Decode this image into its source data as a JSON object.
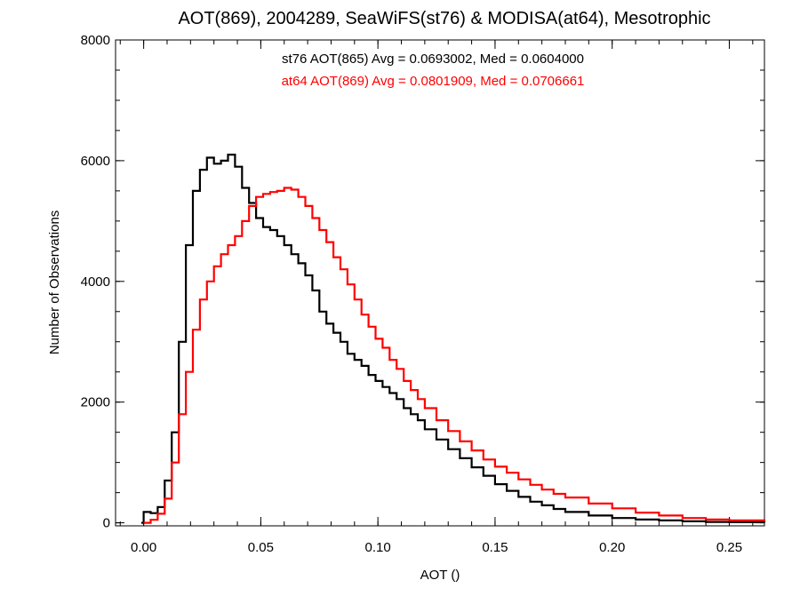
{
  "chart_data": {
    "type": "line",
    "title": "AOT(869), 2004289, SeaWiFS(st76) & MODISA(at64), Mesotrophic",
    "xlabel": "AOT ()",
    "ylabel": "Number of Observations",
    "xlim": [
      -0.012,
      0.265
    ],
    "ylim": [
      -50,
      8000
    ],
    "xticks": [
      0.0,
      0.05,
      0.1,
      0.15,
      0.2,
      0.25
    ],
    "xtick_labels": [
      "0.00",
      "0.05",
      "0.10",
      "0.15",
      "0.20",
      "0.25"
    ],
    "yticks": [
      0,
      2000,
      4000,
      6000,
      8000
    ],
    "ytick_labels": [
      "0",
      "2000",
      "4000",
      "6000",
      "8000"
    ],
    "grid": false,
    "legend": "top-center",
    "series": [
      {
        "name": "st76",
        "label": "st76 AOT(865) Avg = 0.0693002, Med = 0.0604000",
        "color": "#000000",
        "x": [
          -0.001,
          0.0,
          0.003,
          0.006,
          0.009,
          0.012,
          0.015,
          0.018,
          0.021,
          0.024,
          0.027,
          0.03,
          0.033,
          0.036,
          0.039,
          0.042,
          0.045,
          0.048,
          0.051,
          0.054,
          0.057,
          0.06,
          0.063,
          0.066,
          0.069,
          0.072,
          0.075,
          0.078,
          0.081,
          0.084,
          0.087,
          0.09,
          0.093,
          0.096,
          0.099,
          0.102,
          0.105,
          0.108,
          0.111,
          0.114,
          0.117,
          0.12,
          0.125,
          0.13,
          0.135,
          0.14,
          0.145,
          0.15,
          0.155,
          0.16,
          0.165,
          0.17,
          0.175,
          0.18,
          0.19,
          0.2,
          0.21,
          0.22,
          0.23,
          0.24,
          0.25,
          0.265
        ],
        "y": [
          0,
          180,
          160,
          260,
          700,
          1500,
          3000,
          4600,
          5500,
          5850,
          6050,
          5950,
          6000,
          6100,
          5900,
          5550,
          5300,
          5050,
          4900,
          4850,
          4750,
          4600,
          4450,
          4300,
          4100,
          3850,
          3500,
          3300,
          3150,
          3000,
          2800,
          2700,
          2600,
          2450,
          2350,
          2250,
          2150,
          2050,
          1900,
          1800,
          1700,
          1550,
          1380,
          1220,
          1070,
          920,
          780,
          640,
          530,
          430,
          350,
          290,
          230,
          180,
          120,
          80,
          55,
          40,
          25,
          15,
          10,
          5
        ]
      },
      {
        "name": "at64",
        "label": "at64 AOT(869) Avg = 0.0801909, Med = 0.0706661",
        "color": "#ff0000",
        "x": [
          0.0,
          0.003,
          0.006,
          0.009,
          0.012,
          0.015,
          0.018,
          0.021,
          0.024,
          0.027,
          0.03,
          0.033,
          0.036,
          0.039,
          0.042,
          0.045,
          0.048,
          0.051,
          0.054,
          0.057,
          0.06,
          0.063,
          0.066,
          0.069,
          0.072,
          0.075,
          0.078,
          0.081,
          0.084,
          0.087,
          0.09,
          0.093,
          0.096,
          0.099,
          0.102,
          0.105,
          0.108,
          0.111,
          0.114,
          0.117,
          0.12,
          0.125,
          0.13,
          0.135,
          0.14,
          0.145,
          0.15,
          0.155,
          0.16,
          0.165,
          0.17,
          0.175,
          0.18,
          0.19,
          0.2,
          0.21,
          0.22,
          0.23,
          0.24,
          0.25,
          0.265
        ],
        "y": [
          0,
          50,
          150,
          400,
          1000,
          1800,
          2500,
          3200,
          3700,
          4000,
          4250,
          4450,
          4600,
          4750,
          5000,
          5250,
          5400,
          5450,
          5480,
          5500,
          5550,
          5520,
          5400,
          5250,
          5050,
          4850,
          4650,
          4400,
          4200,
          3950,
          3700,
          3450,
          3250,
          3050,
          2900,
          2700,
          2550,
          2350,
          2200,
          2050,
          1900,
          1700,
          1520,
          1350,
          1200,
          1050,
          930,
          830,
          720,
          630,
          550,
          480,
          420,
          320,
          240,
          170,
          120,
          80,
          55,
          40,
          20
        ]
      }
    ]
  }
}
